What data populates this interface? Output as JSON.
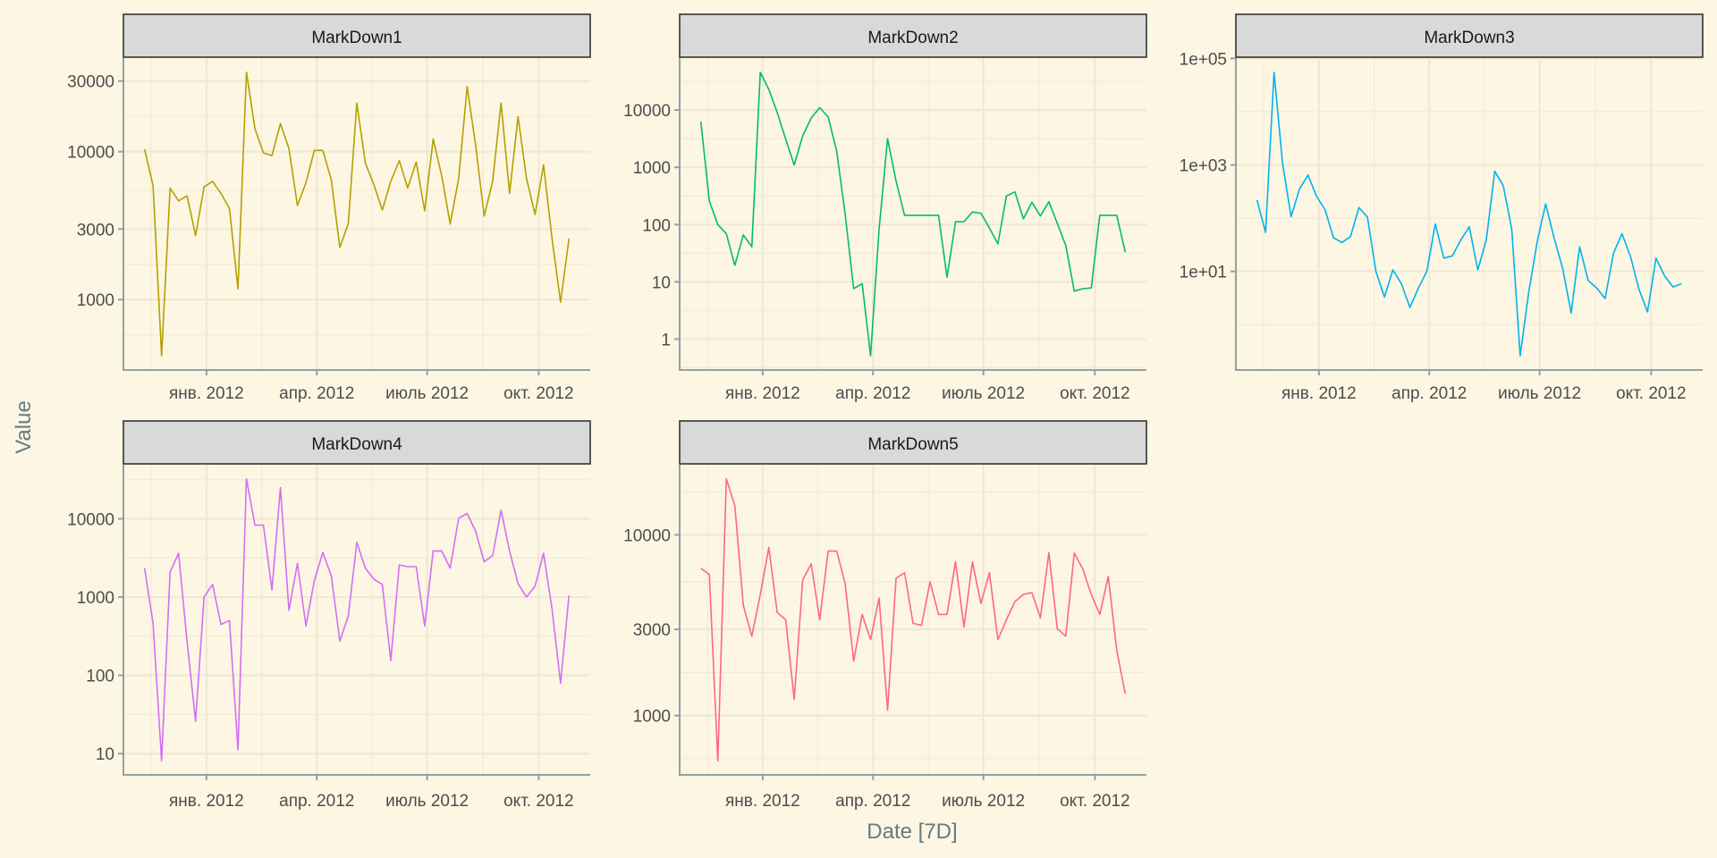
{
  "chart_data": {
    "type": "line",
    "layout": "facet_wrap, 3 columns, free y scales, log10 y axis",
    "xlabel": "Date [7D]",
    "ylabel": "Value",
    "x_start": "2011-11-11",
    "x_step_days": 7,
    "x_ticks": [
      {
        "date": "2012-01-01",
        "label": "янв. 2012"
      },
      {
        "date": "2012-04-01",
        "label": "апр. 2012"
      },
      {
        "date": "2012-07-01",
        "label": "июль 2012"
      },
      {
        "date": "2012-10-01",
        "label": "окт. 2012"
      }
    ],
    "grid": true,
    "facets": [
      {
        "name": "MarkDown1",
        "color": "#B4A000",
        "y_ticks": [
          {
            "v": 1000,
            "label": "1000"
          },
          {
            "v": 3000,
            "label": "3000"
          },
          {
            "v": 10000,
            "label": "10000"
          },
          {
            "v": 30000,
            "label": "30000"
          }
        ],
        "values": [
          10400,
          5860,
          417,
          5650,
          4650,
          5030,
          2710,
          5780,
          6300,
          5220,
          4130,
          1180,
          34400,
          14300,
          9800,
          9400,
          15500,
          10500,
          4330,
          6150,
          10200,
          10200,
          6440,
          2250,
          3270,
          21300,
          8400,
          6000,
          4030,
          6300,
          8700,
          5680,
          8520,
          3980,
          12200,
          6900,
          3240,
          6580,
          27500,
          11000,
          3670,
          6300,
          21300,
          5220,
          17200,
          6580,
          3760,
          8130,
          2590,
          960,
          2590
        ]
      },
      {
        "name": "MarkDown2",
        "color": "#00BE67",
        "y_ticks": [
          {
            "v": 1,
            "label": "1"
          },
          {
            "v": 10,
            "label": "10"
          },
          {
            "v": 100,
            "label": "100"
          },
          {
            "v": 1000,
            "label": "1000"
          },
          {
            "v": 10000,
            "label": "10000"
          }
        ],
        "values": [
          6300,
          257,
          100,
          69,
          19.5,
          66,
          41,
          45700,
          22900,
          9100,
          3090,
          1100,
          3550,
          7240,
          11000,
          7590,
          1910,
          151,
          7.6,
          9.3,
          0.51,
          83,
          3160,
          575,
          145,
          145,
          145,
          145,
          145,
          12,
          112,
          112,
          166,
          158,
          87,
          46,
          316,
          372,
          126,
          245,
          141,
          251,
          105,
          43,
          6.9,
          7.6,
          7.8,
          145,
          145,
          145,
          33
        ]
      },
      {
        "name": "MarkDown3",
        "color": "#00B2EE",
        "y_ticks": [
          {
            "v": 10,
            "label": "1e+01"
          },
          {
            "v": 1000,
            "label": "1e+03"
          },
          {
            "v": 100000,
            "label": "1e+05"
          }
        ],
        "values": [
          219,
          54,
          55000,
          1070,
          107,
          355,
          646,
          257,
          145,
          43,
          35,
          45,
          158,
          105,
          10,
          3.3,
          10.7,
          5.9,
          2.1,
          4.9,
          10,
          78,
          17.8,
          19.5,
          39,
          69,
          10.7,
          39,
          759,
          407,
          62,
          0.26,
          4.0,
          36,
          186,
          42,
          11.5,
          1.66,
          29,
          6.8,
          4.9,
          3.1,
          22,
          51,
          19,
          4.6,
          1.74,
          17.8,
          8.3,
          5.1,
          5.9
        ]
      },
      {
        "name": "MarkDown4",
        "color": "#D46EF5",
        "y_ticks": [
          {
            "v": 10,
            "label": "10"
          },
          {
            "v": 100,
            "label": "100"
          },
          {
            "v": 1000,
            "label": "1000"
          },
          {
            "v": 10000,
            "label": "10000"
          }
        ],
        "values": [
          2340,
          457,
          8.1,
          2090,
          3630,
          269,
          26,
          1000,
          1450,
          447,
          501,
          11.2,
          32400,
          8300,
          8300,
          1230,
          25100,
          676,
          2690,
          427,
          1620,
          3720,
          1860,
          275,
          575,
          5010,
          2340,
          1700,
          1450,
          155,
          2570,
          2450,
          2450,
          427,
          3890,
          3890,
          2340,
          10200,
          11700,
          6920,
          2820,
          3390,
          12900,
          3890,
          1480,
          1000,
          1380,
          3630,
          708,
          79,
          1050
        ]
      },
      {
        "name": "MarkDown5",
        "color": "#FF6685",
        "y_ticks": [
          {
            "v": 1000,
            "label": "1000"
          },
          {
            "v": 3000,
            "label": "3000"
          },
          {
            "v": 10000,
            "label": "10000"
          }
        ],
        "values": [
          6530,
          6030,
          562,
          20400,
          14500,
          4070,
          2750,
          4680,
          8510,
          3720,
          3390,
          1230,
          5620,
          6920,
          3390,
          8130,
          8130,
          5370,
          2000,
          3630,
          2630,
          4470,
          1070,
          5750,
          6170,
          3240,
          3160,
          5500,
          3630,
          3630,
          7080,
          3090,
          7080,
          4170,
          6170,
          2630,
          3390,
          4270,
          4680,
          4790,
          3470,
          7940,
          3020,
          2750,
          7940,
          6460,
          4680,
          3630,
          5890,
          2290,
          1320
        ]
      }
    ]
  }
}
